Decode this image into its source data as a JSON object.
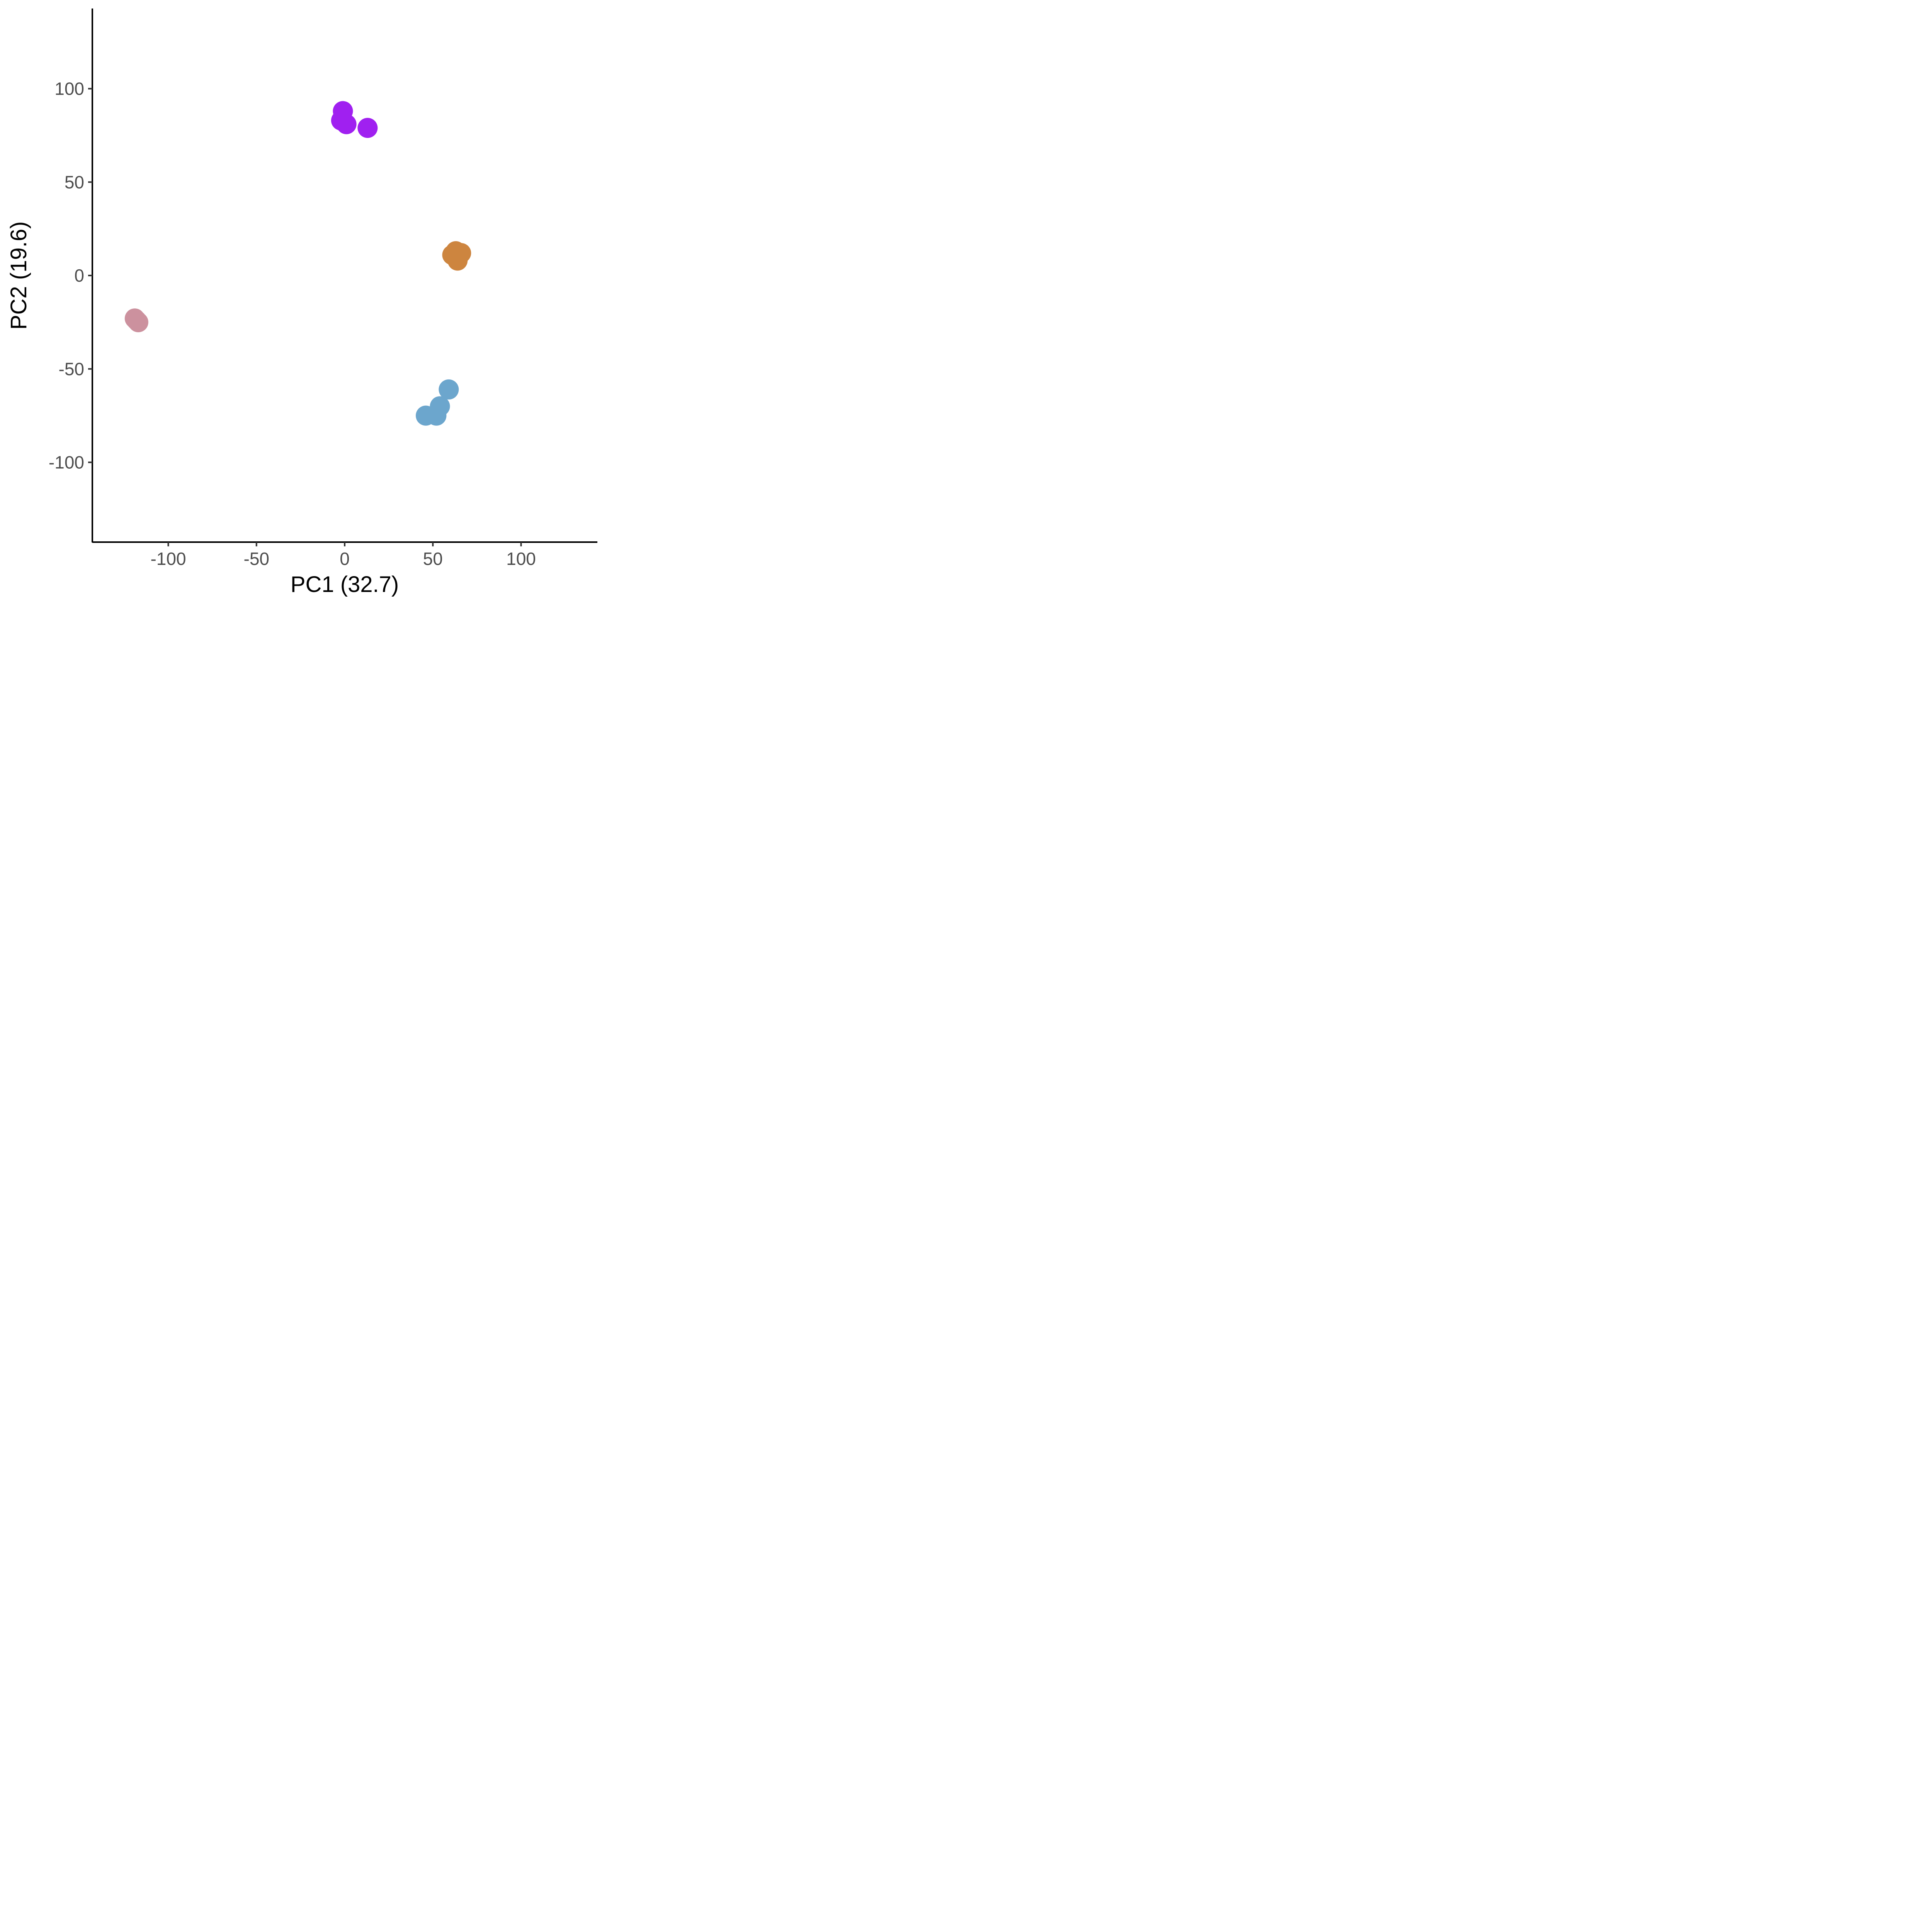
{
  "chart_data": {
    "type": "scatter",
    "title": "",
    "xlabel": "PC1 (32.7)",
    "ylabel": "PC2 (19.6)",
    "xlim": [
      -143,
      143
    ],
    "ylim": [
      -143,
      143
    ],
    "x_ticks": [
      -100,
      -50,
      0,
      50,
      100
    ],
    "x_tick_labels": [
      "-100",
      "-50",
      "0",
      "50",
      "100"
    ],
    "y_ticks": [
      100,
      50,
      0,
      -50,
      -100
    ],
    "y_tick_labels": [
      "100",
      "50",
      "0",
      "-50",
      "-100"
    ],
    "grid": false,
    "legend": "none",
    "series": [
      {
        "color": "#A020F0",
        "points": [
          {
            "x": -1,
            "y": 88
          },
          {
            "x": -2,
            "y": 83
          },
          {
            "x": 1,
            "y": 81
          },
          {
            "x": 13,
            "y": 79
          }
        ]
      },
      {
        "color": "#CD853F",
        "points": [
          {
            "x": 61,
            "y": 11
          },
          {
            "x": 63,
            "y": 13
          },
          {
            "x": 66,
            "y": 12
          },
          {
            "x": 64,
            "y": 8
          }
        ]
      },
      {
        "color": "#CC919E",
        "points": [
          {
            "x": -119,
            "y": -23
          },
          {
            "x": -118,
            "y": -24
          },
          {
            "x": -117,
            "y": -25
          }
        ]
      },
      {
        "color": "#6CA6CD",
        "points": [
          {
            "x": 59,
            "y": -61
          },
          {
            "x": 54,
            "y": -70
          },
          {
            "x": 52,
            "y": -75
          },
          {
            "x": 46,
            "y": -75
          }
        ]
      }
    ]
  }
}
